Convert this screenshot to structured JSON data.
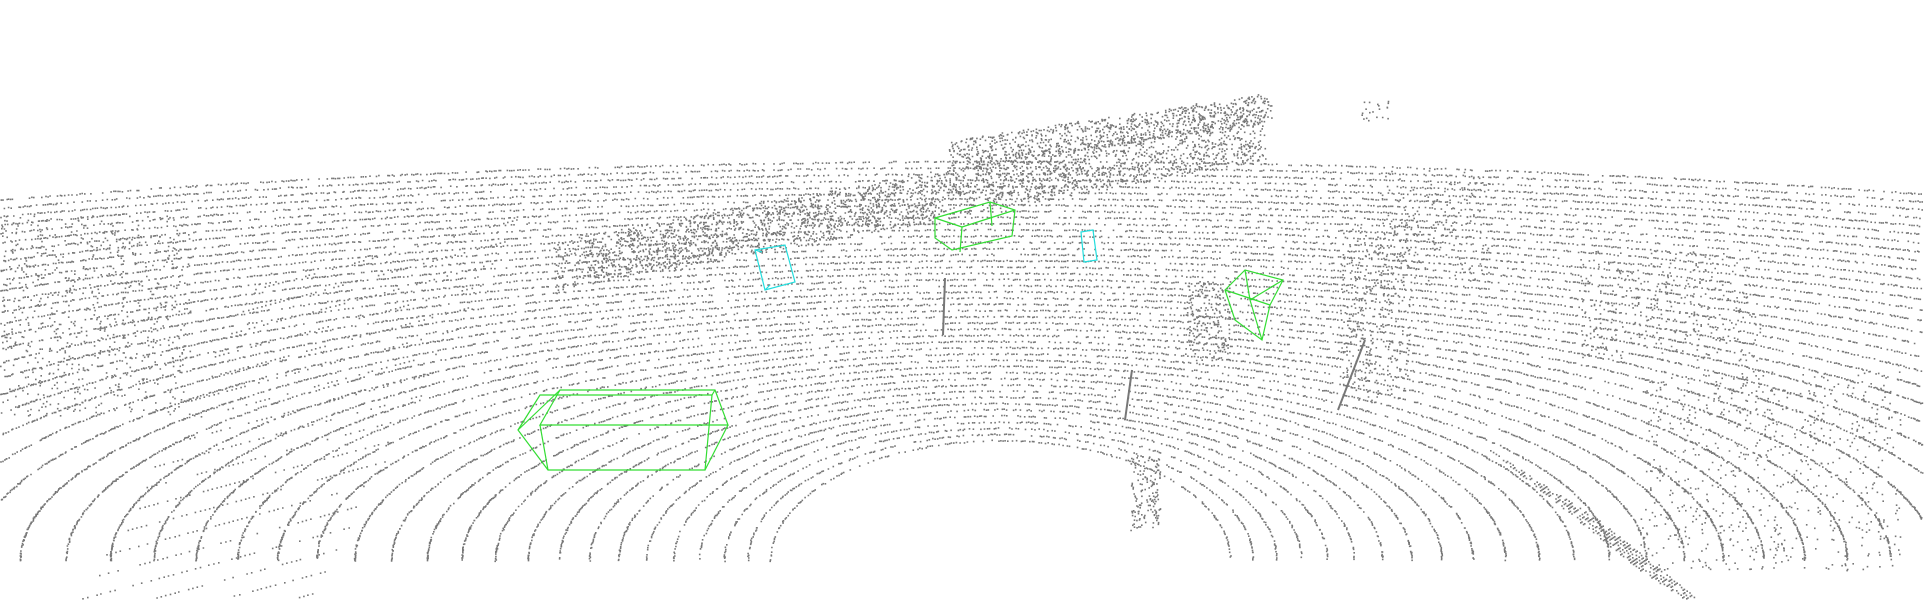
{
  "scene": {
    "type": "lidar-point-cloud-3d-detections",
    "background_color": "#ffffff",
    "point_color": "#777777",
    "objects": [
      {
        "name": "car",
        "color": "#33dd33"
      },
      {
        "name": "car",
        "color": "#33dd33"
      },
      {
        "name": "car",
        "color": "#33dd33"
      },
      {
        "name": "pedestrian",
        "color": "#22dddd"
      },
      {
        "name": "pedestrian",
        "color": "#22dddd"
      }
    ]
  }
}
